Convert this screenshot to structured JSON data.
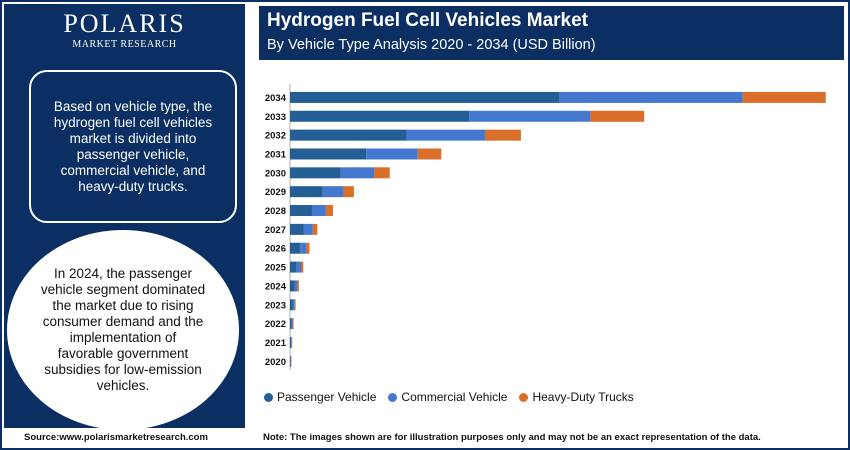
{
  "logo": {
    "main": "POLARIS",
    "sub": "MARKET RESEARCH"
  },
  "left_panel": {
    "box_text": "Based on vehicle type, the hydrogen fuel cell vehicles market is divided into passenger vehicle, commercial vehicle, and heavy-duty trucks.",
    "circle_text": "In 2024, the passenger vehicle segment dominated the market due to rising consumer demand and the implementation of favorable government subsidies for low-emission vehicles."
  },
  "header": {
    "title": "Hydrogen Fuel Cell Vehicles Market",
    "subtitle": "By Vehicle Type Analysis 2020 - 2034 (USD Billion)"
  },
  "colors": {
    "passenger": "#235f94",
    "commercial": "#4677cf",
    "heavy": "#d96f2b",
    "navy": "#0b2f63"
  },
  "chart_data": {
    "type": "bar",
    "orientation": "horizontal",
    "stacked": true,
    "categories": [
      "2034",
      "2033",
      "2032",
      "2031",
      "2030",
      "2029",
      "2028",
      "2027",
      "2026",
      "2025",
      "2024",
      "2023",
      "2022",
      "2021",
      "2020"
    ],
    "series": [
      {
        "name": "Passenger Vehicle",
        "color": "#235f94",
        "values": [
          120.0,
          80.0,
          52.0,
          34.0,
          22.5,
          14.6,
          9.8,
          6.2,
          4.5,
          3.0,
          2.0,
          1.3,
          0.8,
          0.5,
          0.3
        ]
      },
      {
        "name": "Commercial Vehicle",
        "color": "#4677cf",
        "values": [
          82.0,
          54.0,
          35.0,
          23.0,
          15.0,
          9.3,
          6.2,
          4.0,
          2.8,
          1.9,
          1.3,
          0.8,
          0.5,
          0.3,
          0.2
        ]
      },
      {
        "name": "Heavy-Duty Trucks",
        "color": "#d96f2b",
        "values": [
          37.0,
          24.0,
          16.0,
          10.5,
          7.0,
          4.6,
          3.2,
          2.0,
          1.4,
          1.0,
          0.7,
          0.4,
          0.3,
          0.2,
          0.1
        ]
      }
    ],
    "xlim": [
      0,
      240
    ],
    "legend_position": "bottom",
    "grid": false
  },
  "footer": {
    "source": "Source:www.polarismarketresearch.com",
    "note": "Note: The images shown are for illustration purposes only and may not be an exact representation of the data."
  }
}
